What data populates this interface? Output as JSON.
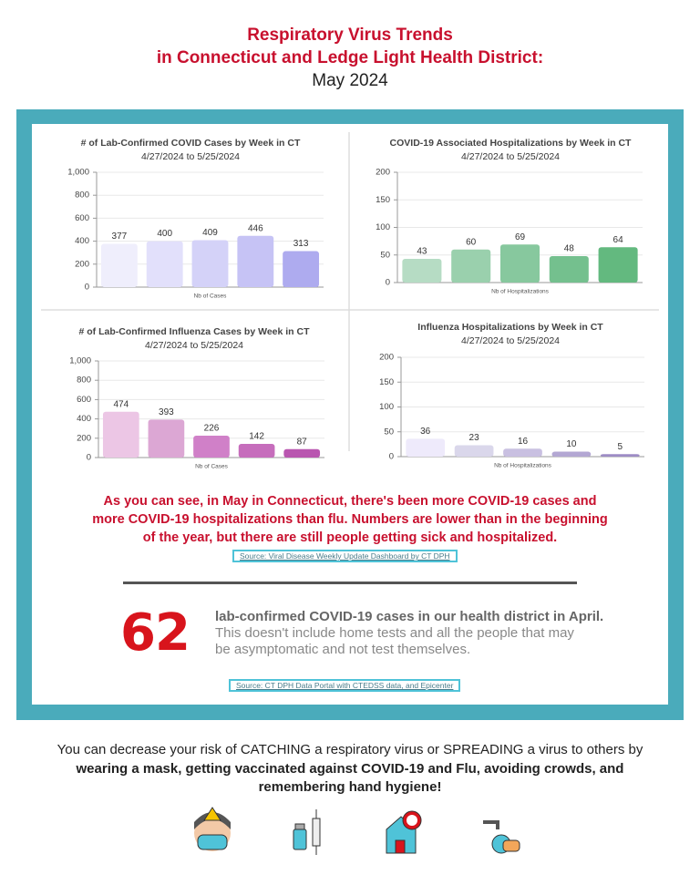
{
  "header": {
    "title_line1": "Respiratory Virus Trends",
    "title_line2": "in Connecticut and Ledge Light Health District:",
    "subtitle": "May 2024"
  },
  "chart_data": [
    {
      "type": "bar",
      "title": "# of Lab-Confirmed COVID Cases by Week in CT",
      "subtitle": "4/27/2024 to 5/25/2024",
      "x_label": "Nb of Cases",
      "values": [
        377,
        400,
        409,
        446,
        313
      ],
      "colors": [
        "#efeefc",
        "#e2e0fb",
        "#d4d2f8",
        "#c6c3f5",
        "#aeabef"
      ],
      "ylim": [
        0,
        1000
      ],
      "yticks": [
        0,
        200,
        400,
        600,
        800,
        {
          "value": 1000,
          "label": "1,000"
        }
      ],
      "grid": true
    },
    {
      "type": "bar",
      "title": "COVID-19 Associated Hospitalizations by Week in CT",
      "subtitle": "4/27/2024 to 5/25/2024",
      "x_label": "Nb of Hospitalizations",
      "values": [
        43,
        60,
        69,
        48,
        64
      ],
      "colors": [
        "#b6dcc4",
        "#9ad0ad",
        "#87c89e",
        "#74c08e",
        "#63b97f"
      ],
      "ylim": [
        0,
        200
      ],
      "yticks": [
        0,
        50,
        100,
        150,
        200
      ],
      "grid": true
    },
    {
      "type": "bar",
      "title": "# of Lab-Confirmed Influenza Cases by Week in CT",
      "subtitle": "4/27/2024 to 5/25/2024",
      "x_label": "Nb of Cases",
      "values": [
        474,
        393,
        226,
        142,
        87
      ],
      "colors": [
        "#ecc6e5",
        "#dca7d4",
        "#d080c8",
        "#c66dbc",
        "#b956b0"
      ],
      "ylim": [
        0,
        1000
      ],
      "yticks": [
        0,
        200,
        400,
        600,
        800,
        {
          "value": 1000,
          "label": "1,000"
        }
      ],
      "grid": true
    },
    {
      "type": "bar",
      "title": "Influenza Hospitalizations by Week in CT",
      "subtitle": "4/27/2024 to 5/25/2024",
      "x_label": "Nb of Hospitalizations",
      "values": [
        36,
        23,
        16,
        10,
        5
      ],
      "colors": [
        "#eeeafb",
        "#dad7eb",
        "#c9c0e1",
        "#b3a7d3",
        "#9d8cc5"
      ],
      "ylim": [
        0,
        200
      ],
      "yticks": [
        0,
        50,
        100,
        150,
        200
      ],
      "grid": true
    }
  ],
  "summary": "As you can see, in May in Connecticut, there's been more COVID-19 cases and more COVID-19 hospitalizations than flu. Numbers are lower than in the beginning of the year, but there are still people getting sick and hospitalized.",
  "source1": "Source: Viral Disease Weekly Update Dashboard by CT DPH",
  "stat": {
    "value": 62,
    "headline": "lab-confirmed COVID-19 cases in our health district in April.",
    "detail": "This doesn't include home tests and all the people that may be asymptomatic and not test themselves."
  },
  "source2": "Source: CT DPH Data Portal with CTEDSS data, and Epicenter",
  "footer": {
    "line1": "You can decrease your risk of CATCHING a respiratory virus or SPREADING a virus to others by",
    "line2": "wearing a mask, getting vaccinated against COVID-19 and Flu, avoiding crowds, and remembering hand hygiene!"
  }
}
